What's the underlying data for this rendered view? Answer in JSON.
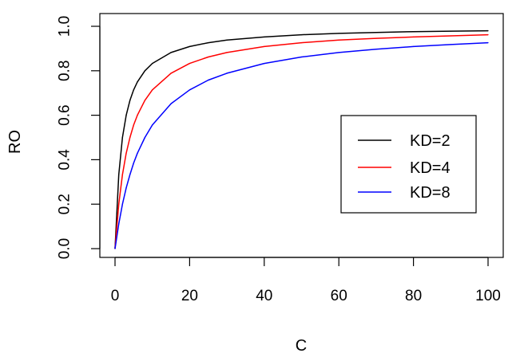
{
  "chart_data": {
    "type": "line",
    "title": "",
    "xlabel": "C",
    "ylabel": "RO",
    "xlim": [
      0,
      100
    ],
    "ylim": [
      0,
      1
    ],
    "x_ticks": [
      "0",
      "20",
      "40",
      "60",
      "80",
      "100"
    ],
    "y_ticks": [
      "0.0",
      "0.2",
      "0.4",
      "0.6",
      "0.8",
      "1.0"
    ],
    "grid": false,
    "legend_position": "right",
    "series": [
      {
        "name": "KD=2",
        "color": "#000000",
        "x": [
          0,
          1,
          2,
          3,
          4,
          5,
          6,
          8,
          10,
          15,
          20,
          25,
          30,
          40,
          50,
          60,
          70,
          80,
          90,
          100
        ],
        "y": [
          0,
          0.333,
          0.5,
          0.6,
          0.667,
          0.714,
          0.75,
          0.8,
          0.833,
          0.882,
          0.909,
          0.926,
          0.938,
          0.952,
          0.962,
          0.968,
          0.972,
          0.976,
          0.978,
          0.98
        ]
      },
      {
        "name": "KD=4",
        "color": "#ff0000",
        "x": [
          0,
          1,
          2,
          3,
          4,
          5,
          6,
          8,
          10,
          15,
          20,
          25,
          30,
          40,
          50,
          60,
          70,
          80,
          90,
          100
        ],
        "y": [
          0,
          0.2,
          0.333,
          0.429,
          0.5,
          0.556,
          0.6,
          0.667,
          0.714,
          0.789,
          0.833,
          0.862,
          0.882,
          0.909,
          0.926,
          0.938,
          0.946,
          0.952,
          0.957,
          0.962
        ]
      },
      {
        "name": "KD=8",
        "color": "#0000ff",
        "x": [
          0,
          1,
          2,
          3,
          4,
          5,
          6,
          8,
          10,
          15,
          20,
          25,
          30,
          40,
          50,
          60,
          70,
          80,
          90,
          100
        ],
        "y": [
          0,
          0.111,
          0.2,
          0.273,
          0.333,
          0.385,
          0.429,
          0.5,
          0.556,
          0.652,
          0.714,
          0.758,
          0.789,
          0.833,
          0.862,
          0.882,
          0.897,
          0.909,
          0.918,
          0.926
        ]
      }
    ]
  }
}
